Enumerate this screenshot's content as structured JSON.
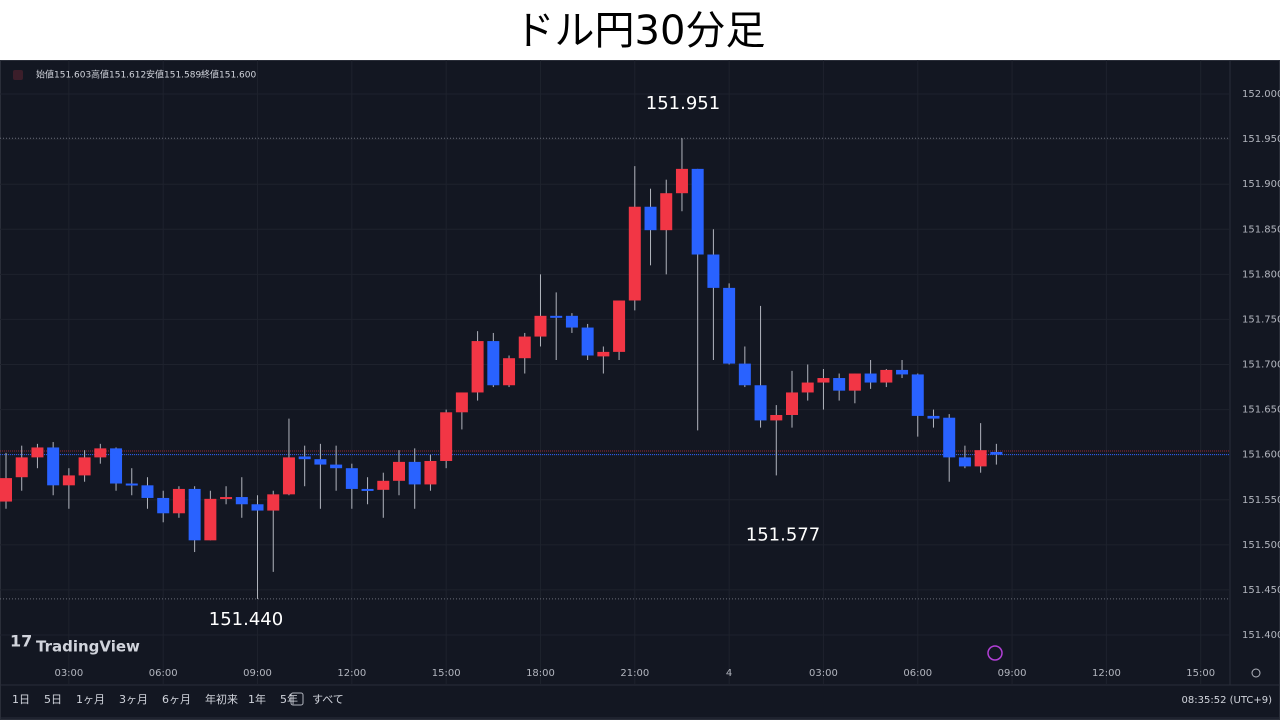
{
  "header": {
    "title": "ドル円30分足"
  },
  "legend": {
    "items": [
      {
        "label": "始値",
        "value": "151.603"
      },
      {
        "label": "高値",
        "value": "151.612"
      },
      {
        "label": "安値",
        "value": "151.589"
      },
      {
        "label": "終値",
        "value": "151.600"
      }
    ]
  },
  "logo": "TradingView",
  "toolbar": {
    "ranges": [
      "1日",
      "5日",
      "1ヶ月",
      "3ヶ月",
      "6ヶ月",
      "年初来",
      "1年",
      "5年",
      "すべて"
    ],
    "clock": "08:35:52 (UTC+9)"
  },
  "chart_data": {
    "type": "candlestick",
    "up_color": "#f23645",
    "down_color": "#2962ff",
    "open": [
      151.548,
      151.575,
      151.597,
      151.608,
      151.566,
      151.577,
      151.597,
      151.607,
      151.568,
      151.566,
      151.552,
      151.535,
      151.562,
      151.505,
      151.551,
      151.553,
      151.545,
      151.538,
      151.556,
      151.598,
      151.595,
      151.589,
      151.585,
      151.562,
      151.561,
      151.571,
      151.592,
      151.567,
      151.593,
      151.647,
      151.669,
      151.726,
      151.677,
      151.707,
      151.731,
      151.754,
      151.754,
      151.741,
      151.709,
      151.714,
      151.771,
      151.875,
      151.849,
      151.89,
      151.917,
      151.822,
      151.785,
      151.701,
      151.677,
      151.638,
      151.644,
      151.669,
      151.68,
      151.685,
      151.671,
      151.69,
      151.68,
      151.694,
      151.689,
      151.643,
      151.641,
      151.597,
      151.587,
      151.603
    ],
    "high": [
      151.602,
      151.61,
      151.612,
      151.614,
      151.585,
      151.605,
      151.612,
      151.608,
      151.585,
      151.575,
      151.56,
      151.565,
      151.565,
      151.56,
      151.565,
      151.575,
      151.555,
      151.56,
      151.64,
      151.61,
      151.612,
      151.61,
      151.59,
      151.575,
      151.58,
      151.605,
      151.607,
      151.6,
      151.65,
      151.668,
      151.737,
      151.735,
      151.71,
      151.735,
      151.8,
      151.78,
      151.757,
      151.745,
      151.72,
      151.77,
      151.92,
      151.895,
      151.905,
      151.951,
      151.917,
      151.85,
      151.79,
      151.72,
      151.765,
      151.655,
      151.693,
      151.7,
      151.695,
      151.69,
      151.69,
      151.705,
      151.695,
      151.705,
      151.69,
      151.65,
      151.645,
      151.61,
      151.635,
      151.612
    ],
    "low": [
      151.54,
      151.56,
      151.585,
      151.555,
      151.54,
      151.57,
      151.59,
      151.56,
      151.555,
      151.54,
      151.525,
      151.53,
      151.492,
      151.505,
      151.545,
      151.53,
      151.44,
      151.47,
      151.555,
      151.565,
      151.54,
      151.56,
      151.54,
      151.545,
      151.53,
      151.555,
      151.54,
      151.56,
      151.585,
      151.628,
      151.66,
      151.675,
      151.675,
      151.69,
      151.72,
      151.705,
      151.735,
      151.705,
      151.69,
      151.705,
      151.76,
      151.81,
      151.8,
      151.87,
      151.627,
      151.705,
      151.7,
      151.675,
      151.63,
      151.577,
      151.63,
      151.66,
      151.65,
      151.66,
      151.657,
      151.673,
      151.675,
      151.685,
      151.62,
      151.63,
      151.57,
      151.585,
      151.58,
      151.589
    ],
    "close": [
      151.574,
      151.597,
      151.608,
      151.566,
      151.577,
      151.597,
      151.607,
      151.568,
      151.566,
      151.552,
      151.535,
      151.562,
      151.505,
      151.551,
      151.553,
      151.545,
      151.538,
      151.556,
      151.597,
      151.595,
      151.589,
      151.585,
      151.562,
      151.561,
      151.571,
      151.592,
      151.567,
      151.593,
      151.647,
      151.669,
      151.726,
      151.677,
      151.707,
      151.731,
      151.754,
      151.752,
      151.741,
      151.71,
      151.714,
      151.771,
      151.875,
      151.849,
      151.89,
      151.917,
      151.822,
      151.785,
      151.701,
      151.677,
      151.638,
      151.644,
      151.669,
      151.68,
      151.685,
      151.671,
      151.69,
      151.68,
      151.694,
      151.689,
      151.643,
      151.64,
      151.597,
      151.587,
      151.605,
      151.6
    ],
    "x_labels": [
      "03:00",
      "06:00",
      "09:00",
      "12:00",
      "15:00",
      "18:00",
      "21:00",
      "4",
      "03:00",
      "06:00",
      "09:00",
      "12:00",
      "15:00"
    ],
    "ylim": [
      151.38,
      152.02
    ],
    "yticks": [
      {
        "value": 152,
        "label": "152.000"
      },
      {
        "value": 151.95,
        "label": "151.950"
      },
      {
        "value": 151.9,
        "label": "151.900"
      },
      {
        "value": 151.85,
        "label": "151.850"
      },
      {
        "value": 151.8,
        "label": "151.800"
      },
      {
        "value": 151.75,
        "label": "151.750"
      },
      {
        "value": 151.7,
        "label": "151.700"
      },
      {
        "value": 151.65,
        "label": "151.650"
      },
      {
        "value": 151.6,
        "label": "151.600"
      },
      {
        "value": 151.55,
        "label": "151.550"
      },
      {
        "value": 151.5,
        "label": "151.500"
      },
      {
        "value": 151.45,
        "label": "151.450"
      },
      {
        "value": 151.4,
        "label": "151.400"
      }
    ],
    "annotations": [
      {
        "value": 151.951,
        "label": "151.951"
      },
      {
        "value": 151.577,
        "label": "151.577"
      },
      {
        "value": 151.44,
        "label": "151.440"
      }
    ],
    "grid": true
  }
}
